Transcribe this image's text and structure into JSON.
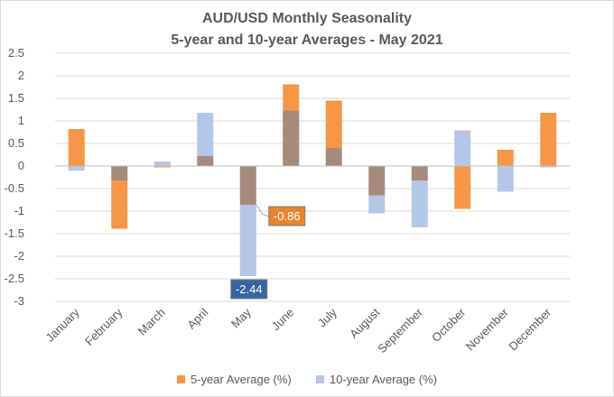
{
  "chart_data": {
    "type": "bar",
    "title": "AUD/USD Monthly Seasonality",
    "subtitle": "5-year and 10-year Averages - May 2021",
    "categories": [
      "January",
      "February",
      "March",
      "April",
      "May",
      "June",
      "July",
      "August",
      "September",
      "October",
      "November",
      "December"
    ],
    "series": [
      {
        "name": "5-year Average (%)",
        "color": "#f79646",
        "values": [
          0.82,
          -1.39,
          -0.03,
          0.22,
          -0.86,
          1.81,
          1.45,
          -0.65,
          -0.32,
          -0.95,
          0.36,
          1.18
        ]
      },
      {
        "name": "10-year Average (%)",
        "color": "#b4c7e7",
        "values": [
          -0.1,
          -0.32,
          0.1,
          1.18,
          -2.44,
          1.23,
          0.4,
          -1.05,
          -1.36,
          0.79,
          -0.57,
          -0.03
        ]
      }
    ],
    "overlap_color": "#a68a7b",
    "y_ticks": [
      2.5,
      2,
      1.5,
      1,
      0.5,
      0,
      -0.5,
      -1,
      -1.5,
      -2,
      -2.5,
      -3
    ],
    "ylim": [
      -3,
      2.5
    ],
    "xlabel": "",
    "ylabel": "",
    "grid": true,
    "legend_position": "bottom",
    "callouts": [
      {
        "label": "-0.86",
        "series": 0,
        "category": "May",
        "color": "#e6842f"
      },
      {
        "label": "-2.44",
        "series": 1,
        "category": "May",
        "color": "#3465a4"
      }
    ]
  }
}
